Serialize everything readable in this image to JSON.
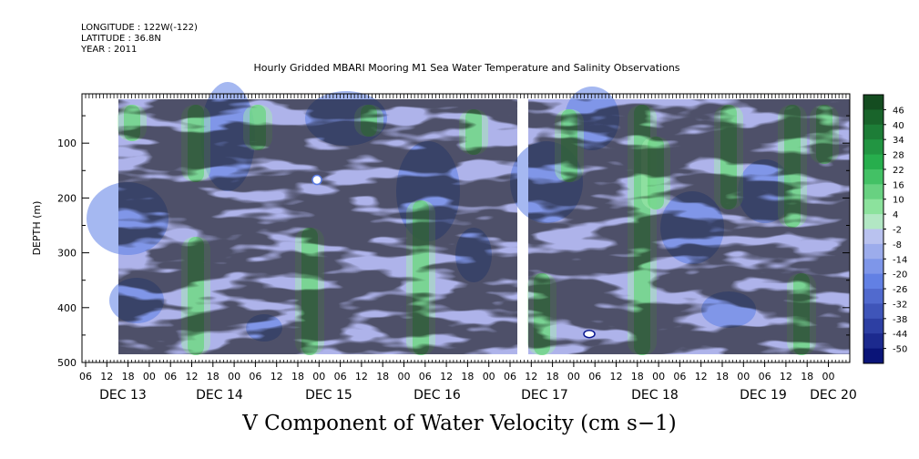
{
  "header": {
    "longitude": "LONGITUDE : 122W(-122)",
    "latitude": "LATITUDE : 36.8N",
    "year": "YEAR : 2011"
  },
  "chart_data": {
    "type": "heatmap",
    "title": "Hourly Gridded MBARI Mooring M1 Sea Water Temperature and Salinity Observations",
    "bottom_title": "V Component of Water Velocity (cm s−1)",
    "ylabel": "DEPTH (m)",
    "xlabel": "",
    "y_axis": {
      "inverted": true,
      "range": [
        10,
        500
      ],
      "ticks": [
        100,
        200,
        300,
        400,
        500
      ]
    },
    "x_axis": {
      "range_hours_label": "Dec 12 ~04:00 to Dec 20 ~19:00",
      "hour_ticks": [
        "06",
        "12",
        "18",
        "00",
        "06",
        "12",
        "18",
        "00",
        "06",
        "12",
        "18",
        "00",
        "06",
        "12",
        "18",
        "00",
        "06",
        "12",
        "18",
        "00",
        "06",
        "12",
        "18",
        "00",
        "06",
        "12",
        "18",
        "00",
        "06",
        "12",
        "18",
        "00",
        "06",
        "12",
        "18",
        "00"
      ],
      "day_labels": [
        "DEC 13",
        "DEC 14",
        "DEC 15",
        "DEC 16",
        "DEC 17",
        "DEC 18",
        "DEC 19",
        "DEC 20"
      ]
    },
    "data_extent": {
      "depth_top": 20,
      "depth_bottom": 485,
      "gap_between": [
        "DEC 16 ~02:00",
        "DEC 16 ~05:00"
      ]
    },
    "colorbar": {
      "labels": [
        "46",
        "40",
        "34",
        "28",
        "22",
        "16",
        "10",
        "4",
        "-2",
        "-8",
        "-14",
        "-20",
        "-26",
        "-32",
        "-38",
        "-44",
        "-50"
      ],
      "colors": {
        "strong_positive": "#1e5d28",
        "positive": "#38c05a",
        "weak_positive": "#a6f0b0",
        "weak_negative": "#aeb3ea",
        "negative": "#5b7de6",
        "strong_negative": "#0a1890"
      }
    },
    "field_notes": "Velocity mostly weakly negative (blue, about -2 to -20) with vertical bands of positive (green, about 4 to 22) values."
  }
}
